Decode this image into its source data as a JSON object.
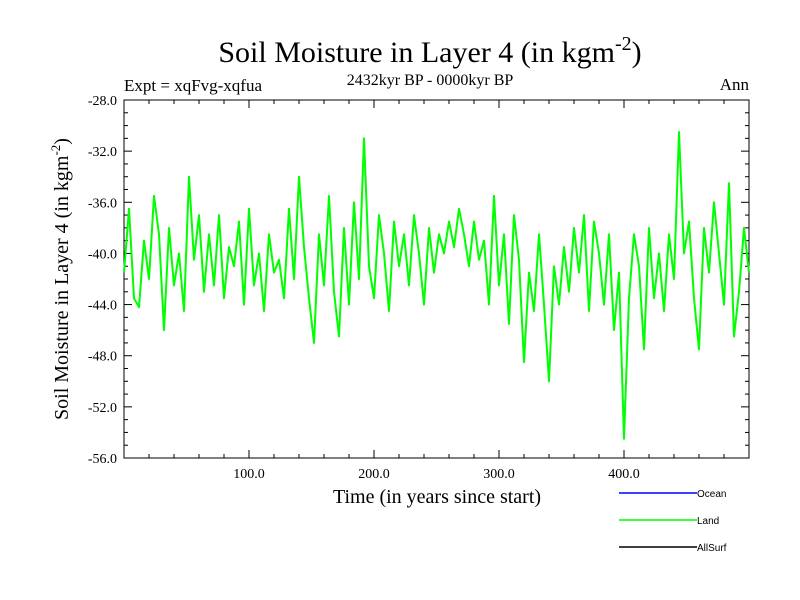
{
  "chart_data": {
    "type": "line",
    "title": "Soil Moisture in Layer 4 (in kgm",
    "title_superscript": "-2",
    "title_close": ")",
    "subtitle": "2432kyr BP - 0000kyr BP",
    "left_label": "Expt = xqFvg-xqfua",
    "right_label": "Ann",
    "xlabel": "Time (in years since start)",
    "ylabel": "Soil Moisture in Layer 4 (in kgm",
    "ylabel_superscript": "-2",
    "ylabel_close": ")",
    "xlim": [
      0,
      500
    ],
    "ylim": [
      -56,
      -28
    ],
    "x_ticks": [
      100,
      200,
      300,
      400
    ],
    "x_tick_labels": [
      "100.0",
      "200.0",
      "300.0",
      "400.0"
    ],
    "y_ticks": [
      -28,
      -32,
      -36,
      -40,
      -44,
      -48,
      -52,
      -56
    ],
    "y_tick_labels": [
      "-28.0",
      "-32.0",
      "-36.0",
      "-40.0",
      "-44.0",
      "-48.0",
      "-52.0",
      "-56.0"
    ],
    "legend": [
      {
        "name": "Ocean",
        "color": "#0000ff"
      },
      {
        "name": "Land",
        "color": "#00ff00"
      },
      {
        "name": "AllSurf",
        "color": "#000000"
      }
    ],
    "legend_position": "bottom-right",
    "series": [
      {
        "name": "Land",
        "color": "#00ff00",
        "x": [
          0,
          4,
          8,
          12,
          16,
          20,
          24,
          28,
          32,
          36,
          40,
          44,
          48,
          52,
          56,
          60,
          64,
          68,
          72,
          76,
          80,
          84,
          88,
          92,
          96,
          100,
          104,
          108,
          112,
          116,
          120,
          124,
          128,
          132,
          136,
          140,
          144,
          148,
          152,
          156,
          160,
          164,
          168,
          172,
          176,
          180,
          184,
          188,
          192,
          196,
          200,
          204,
          208,
          212,
          216,
          220,
          224,
          228,
          232,
          236,
          240,
          244,
          248,
          252,
          256,
          260,
          264,
          268,
          272,
          276,
          280,
          284,
          288,
          292,
          296,
          300,
          304,
          308,
          312,
          316,
          320,
          324,
          328,
          332,
          336,
          340,
          344,
          348,
          352,
          356,
          360,
          364,
          368,
          372,
          376,
          380,
          384,
          388,
          392,
          396,
          400,
          404,
          408,
          412,
          416,
          420,
          424,
          428,
          432,
          436,
          440,
          444,
          448,
          452,
          456,
          460,
          464,
          468,
          472,
          476,
          480,
          484,
          488,
          492,
          496,
          500
        ],
        "values": [
          -41.5,
          -36.5,
          -43.5,
          -44.2,
          -39.0,
          -42.0,
          -35.5,
          -38.5,
          -46.0,
          -38.0,
          -42.5,
          -40.0,
          -44.5,
          -34.0,
          -40.5,
          -37.0,
          -43.0,
          -38.5,
          -42.5,
          -37.0,
          -43.5,
          -39.5,
          -41.0,
          -37.5,
          -44.0,
          -36.5,
          -42.5,
          -40.0,
          -44.5,
          -38.5,
          -41.5,
          -40.5,
          -43.5,
          -36.5,
          -42.0,
          -34.0,
          -39.5,
          -43.5,
          -47.0,
          -38.5,
          -42.5,
          -35.5,
          -43.0,
          -46.5,
          -38.0,
          -44.0,
          -36.0,
          -42.0,
          -31.0,
          -41.0,
          -43.5,
          -37.0,
          -40.0,
          -44.5,
          -37.5,
          -41.0,
          -38.5,
          -42.5,
          -37.0,
          -40.0,
          -44.0,
          -38.0,
          -41.5,
          -38.5,
          -40.0,
          -37.5,
          -39.5,
          -36.5,
          -38.5,
          -41.0,
          -37.5,
          -40.5,
          -39.0,
          -44.0,
          -35.5,
          -42.5,
          -38.5,
          -45.5,
          -37.0,
          -40.5,
          -48.5,
          -41.5,
          -44.5,
          -38.5,
          -44.0,
          -50.0,
          -41.0,
          -44.0,
          -39.5,
          -43.0,
          -38.0,
          -41.5,
          -37.0,
          -44.5,
          -37.5,
          -40.0,
          -44.0,
          -38.5,
          -46.0,
          -41.5,
          -54.5,
          -43.5,
          -38.5,
          -41.0,
          -47.5,
          -38.0,
          -43.5,
          -40.0,
          -44.5,
          -38.5,
          -42.0,
          -30.5,
          -40.0,
          -37.5,
          -43.5,
          -47.5,
          -38.0,
          -41.5,
          -36.0,
          -40.0,
          -44.0,
          -34.5,
          -46.5,
          -43.0,
          -38.0,
          -41.5
        ]
      }
    ]
  }
}
